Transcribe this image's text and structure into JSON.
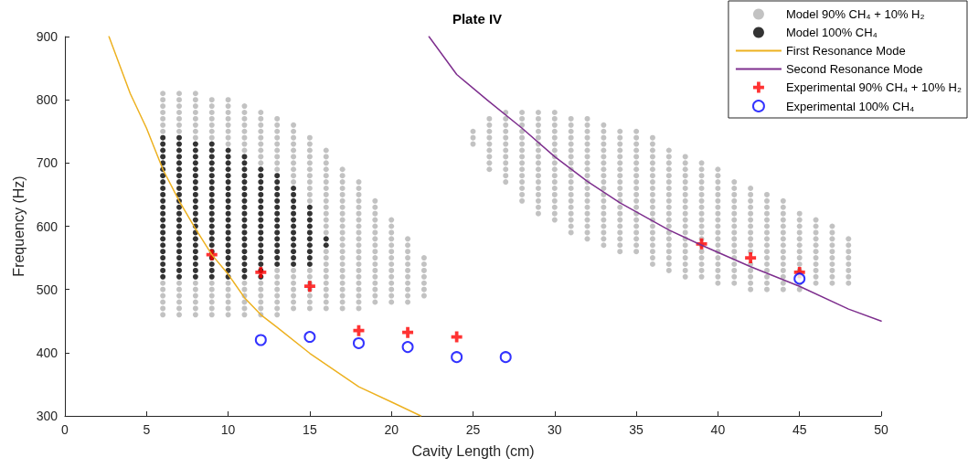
{
  "chart_data": {
    "type": "scatter",
    "title": "Plate IV",
    "xlabel": "Cavity Length (cm)",
    "ylabel": "Frequency (Hz)",
    "xlim": [
      0,
      50
    ],
    "xticks": [
      0,
      5,
      10,
      15,
      20,
      25,
      30,
      35,
      40,
      45,
      50
    ],
    "ylim": [
      300,
      900
    ],
    "yticks": [
      300,
      400,
      500,
      600,
      700,
      800,
      900
    ],
    "grid": false,
    "legend": "top right",
    "series": [
      {
        "name": "Model 90% CH₄ + 10% H₂",
        "marker": "circle",
        "color": "#b3b3b3",
        "x": [
          6,
          6,
          6,
          6,
          6,
          6,
          6,
          6,
          6,
          6,
          6,
          6,
          6,
          7,
          7,
          7,
          7,
          7,
          7,
          7,
          7,
          7,
          7,
          7,
          7,
          7,
          8,
          8,
          8,
          8,
          8,
          8,
          8,
          8,
          8,
          8,
          8,
          8,
          8,
          8,
          9,
          9,
          9,
          9,
          9,
          9,
          9,
          9,
          9,
          9,
          9,
          9,
          9,
          10,
          10,
          10,
          10,
          10,
          10,
          10,
          10,
          10,
          10,
          10,
          10,
          10,
          10,
          11,
          11,
          11,
          11,
          11,
          11,
          11,
          11,
          11,
          11,
          11,
          11,
          11,
          11,
          12,
          12,
          12,
          12,
          12,
          12,
          12,
          12,
          12,
          12,
          12,
          12,
          12,
          12,
          12,
          13,
          13,
          13,
          13,
          13,
          13,
          13,
          13,
          13,
          13,
          13,
          13,
          13,
          13,
          13,
          13,
          13,
          14,
          14,
          14,
          14,
          14,
          14,
          14,
          14,
          14,
          14,
          14,
          14,
          14,
          14,
          14,
          14,
          14,
          15,
          15,
          15,
          15,
          15,
          15,
          15,
          15,
          15,
          15,
          15,
          15,
          15,
          15,
          15,
          15,
          15,
          15,
          16,
          16,
          16,
          16,
          16,
          16,
          16,
          16,
          16,
          16,
          16,
          16,
          16,
          16,
          16,
          16,
          16,
          16,
          16,
          16,
          16,
          16,
          16,
          16,
          17,
          17,
          17,
          17,
          17,
          17,
          17,
          17,
          17,
          17,
          17,
          17,
          17,
          17,
          17,
          17,
          17,
          17,
          17,
          17,
          17,
          17,
          17,
          18,
          18,
          18,
          18,
          18,
          18,
          18,
          18,
          18,
          18,
          18,
          18,
          18,
          18,
          18,
          18,
          18,
          18,
          18,
          18,
          18,
          19,
          19,
          19,
          19,
          19,
          19,
          19,
          19,
          19,
          19,
          19,
          19,
          19,
          19,
          19,
          19,
          19,
          20,
          20,
          20,
          20,
          20,
          20,
          20,
          20,
          20,
          20,
          20,
          20,
          20,
          20,
          21,
          21,
          21,
          21,
          21,
          21,
          21,
          21,
          21,
          21,
          21,
          22,
          22,
          22,
          22,
          22,
          22,
          22,
          25,
          25,
          25,
          26,
          26,
          26,
          26,
          26,
          26,
          26,
          26,
          26,
          27,
          27,
          27,
          27,
          27,
          27,
          27,
          27,
          27,
          27,
          27,
          27,
          28,
          28,
          28,
          28,
          28,
          28,
          28,
          28,
          28,
          28,
          28,
          28,
          28,
          28,
          28,
          29,
          29,
          29,
          29,
          29,
          29,
          29,
          29,
          29,
          29,
          29,
          29,
          29,
          29,
          29,
          29,
          29,
          30,
          30,
          30,
          30,
          30,
          30,
          30,
          30,
          30,
          30,
          30,
          30,
          30,
          30,
          30,
          30,
          30,
          30,
          31,
          31,
          31,
          31,
          31,
          31,
          31,
          31,
          31,
          31,
          31,
          31,
          31,
          31,
          31,
          31,
          31,
          31,
          31,
          32,
          32,
          32,
          32,
          32,
          32,
          32,
          32,
          32,
          32,
          32,
          32,
          32,
          32,
          32,
          32,
          32,
          32,
          32,
          32,
          33,
          33,
          33,
          33,
          33,
          33,
          33,
          33,
          33,
          33,
          33,
          33,
          33,
          33,
          33,
          33,
          33,
          33,
          33,
          33,
          34,
          34,
          34,
          34,
          34,
          34,
          34,
          34,
          34,
          34,
          34,
          34,
          34,
          34,
          34,
          34,
          34,
          34,
          34,
          34,
          35,
          35,
          35,
          35,
          35,
          35,
          35,
          35,
          35,
          35,
          35,
          35,
          35,
          35,
          35,
          35,
          35,
          35,
          35,
          35,
          36,
          36,
          36,
          36,
          36,
          36,
          36,
          36,
          36,
          36,
          36,
          36,
          36,
          36,
          36,
          36,
          36,
          36,
          36,
          36,
          36,
          37,
          37,
          37,
          37,
          37,
          37,
          37,
          37,
          37,
          37,
          37,
          37,
          37,
          37,
          37,
          37,
          37,
          37,
          37,
          37,
          38,
          38,
          38,
          38,
          38,
          38,
          38,
          38,
          38,
          38,
          38,
          38,
          38,
          38,
          38,
          38,
          38,
          38,
          38,
          38,
          39,
          39,
          39,
          39,
          39,
          39,
          39,
          39,
          39,
          39,
          39,
          39,
          39,
          39,
          39,
          39,
          39,
          39,
          39,
          40,
          40,
          40,
          40,
          40,
          40,
          40,
          40,
          40,
          40,
          40,
          40,
          40,
          40,
          40,
          40,
          40,
          40,
          40,
          41,
          41,
          41,
          41,
          41,
          41,
          41,
          41,
          41,
          41,
          41,
          41,
          41,
          41,
          41,
          41,
          41,
          42,
          42,
          42,
          42,
          42,
          42,
          42,
          42,
          42,
          42,
          42,
          42,
          42,
          42,
          42,
          42,
          43,
          43,
          43,
          43,
          43,
          43,
          43,
          43,
          43,
          43,
          43,
          43,
          43,
          43,
          43,
          43,
          44,
          44,
          44,
          44,
          44,
          44,
          44,
          44,
          44,
          44,
          44,
          44,
          44,
          44,
          44,
          45,
          45,
          45,
          45,
          45,
          45,
          45,
          45,
          45,
          45,
          45,
          45,
          45,
          46,
          46,
          46,
          46,
          46,
          46,
          46,
          46,
          46,
          46,
          46,
          47,
          47,
          47,
          47,
          47,
          47,
          47,
          47,
          47,
          47,
          48,
          48,
          48,
          48,
          48,
          48,
          48,
          48
        ],
        "values": [
          460,
          470,
          480,
          490,
          500,
          510,
          750,
          760,
          770,
          780,
          790,
          800,
          810,
          460,
          470,
          480,
          490,
          500,
          510,
          750,
          760,
          770,
          780,
          790,
          800,
          810,
          460,
          470,
          480,
          490,
          500,
          510,
          740,
          750,
          760,
          770,
          780,
          790,
          800,
          810,
          460,
          470,
          480,
          490,
          500,
          510,
          740,
          750,
          760,
          770,
          780,
          790,
          800,
          460,
          470,
          480,
          490,
          500,
          510,
          730,
          740,
          750,
          760,
          770,
          780,
          790,
          800,
          460,
          470,
          480,
          490,
          500,
          510,
          720,
          730,
          740,
          750,
          760,
          770,
          780,
          790,
          460,
          470,
          480,
          490,
          500,
          510,
          700,
          710,
          720,
          730,
          740,
          750,
          760,
          770,
          780,
          460,
          470,
          480,
          490,
          500,
          510,
          520,
          530,
          690,
          700,
          710,
          720,
          730,
          740,
          750,
          760,
          770,
          470,
          480,
          490,
          500,
          510,
          520,
          530,
          670,
          680,
          690,
          700,
          710,
          720,
          730,
          740,
          750,
          760,
          470,
          480,
          490,
          500,
          510,
          520,
          530,
          640,
          650,
          660,
          670,
          680,
          690,
          700,
          710,
          720,
          730,
          740,
          470,
          480,
          490,
          500,
          510,
          520,
          530,
          540,
          550,
          560,
          590,
          600,
          610,
          620,
          630,
          640,
          650,
          660,
          670,
          680,
          690,
          700,
          710,
          720,
          470,
          480,
          490,
          500,
          510,
          520,
          530,
          540,
          550,
          560,
          570,
          580,
          590,
          600,
          610,
          620,
          630,
          640,
          650,
          660,
          670,
          680,
          690,
          470,
          480,
          490,
          500,
          510,
          520,
          530,
          540,
          550,
          560,
          570,
          580,
          590,
          600,
          610,
          620,
          630,
          640,
          650,
          660,
          670,
          480,
          490,
          500,
          510,
          520,
          530,
          540,
          550,
          560,
          570,
          580,
          590,
          600,
          610,
          620,
          630,
          640,
          480,
          490,
          500,
          510,
          520,
          530,
          540,
          550,
          560,
          570,
          580,
          590,
          600,
          610,
          480,
          490,
          500,
          510,
          520,
          530,
          540,
          550,
          560,
          570,
          580,
          490,
          500,
          510,
          520,
          530,
          540,
          550,
          730,
          740,
          750,
          690,
          700,
          710,
          720,
          730,
          740,
          750,
          760,
          770,
          670,
          680,
          690,
          700,
          710,
          720,
          730,
          740,
          750,
          760,
          770,
          780,
          640,
          650,
          660,
          670,
          680,
          690,
          700,
          710,
          720,
          730,
          740,
          750,
          760,
          770,
          780,
          620,
          630,
          640,
          650,
          660,
          670,
          680,
          690,
          700,
          710,
          720,
          730,
          740,
          750,
          760,
          770,
          780,
          610,
          620,
          630,
          640,
          650,
          660,
          670,
          680,
          690,
          700,
          710,
          720,
          730,
          740,
          750,
          760,
          770,
          780,
          590,
          600,
          610,
          620,
          630,
          640,
          650,
          660,
          670,
          680,
          690,
          700,
          710,
          720,
          730,
          740,
          750,
          760,
          770,
          580,
          590,
          600,
          610,
          620,
          630,
          640,
          650,
          660,
          670,
          680,
          690,
          700,
          710,
          720,
          730,
          740,
          750,
          760,
          770,
          570,
          580,
          590,
          600,
          610,
          620,
          630,
          640,
          650,
          660,
          670,
          680,
          690,
          700,
          710,
          720,
          730,
          740,
          750,
          760,
          560,
          570,
          580,
          590,
          600,
          610,
          620,
          630,
          640,
          650,
          660,
          670,
          680,
          690,
          700,
          710,
          720,
          730,
          740,
          750,
          560,
          570,
          580,
          590,
          600,
          610,
          620,
          630,
          640,
          650,
          660,
          670,
          680,
          690,
          700,
          710,
          720,
          730,
          740,
          750,
          540,
          550,
          560,
          570,
          580,
          590,
          600,
          610,
          620,
          630,
          640,
          650,
          660,
          670,
          680,
          690,
          700,
          710,
          720,
          730,
          740,
          530,
          540,
          550,
          560,
          570,
          580,
          590,
          600,
          610,
          620,
          630,
          640,
          650,
          660,
          670,
          680,
          690,
          700,
          710,
          720,
          520,
          530,
          540,
          550,
          560,
          570,
          580,
          590,
          600,
          610,
          620,
          630,
          640,
          650,
          660,
          670,
          680,
          690,
          700,
          710,
          520,
          530,
          540,
          550,
          560,
          570,
          580,
          590,
          600,
          610,
          620,
          630,
          640,
          650,
          660,
          670,
          680,
          690,
          700,
          510,
          520,
          530,
          540,
          550,
          560,
          570,
          580,
          590,
          600,
          610,
          620,
          630,
          640,
          650,
          660,
          670,
          680,
          690,
          510,
          520,
          530,
          540,
          550,
          560,
          570,
          580,
          590,
          600,
          610,
          620,
          630,
          640,
          650,
          660,
          670,
          500,
          510,
          520,
          530,
          540,
          560,
          570,
          580,
          590,
          600,
          610,
          620,
          630,
          640,
          650,
          660,
          500,
          510,
          520,
          530,
          540,
          550,
          560,
          570,
          580,
          590,
          600,
          610,
          620,
          630,
          640,
          650,
          500,
          510,
          520,
          530,
          540,
          550,
          560,
          570,
          580,
          590,
          600,
          610,
          620,
          630,
          640,
          500,
          510,
          520,
          530,
          540,
          550,
          560,
          570,
          580,
          590,
          600,
          610,
          620,
          510,
          520,
          530,
          540,
          550,
          560,
          570,
          580,
          590,
          600,
          610,
          510,
          520,
          530,
          540,
          550,
          560,
          570,
          580,
          590,
          600,
          510,
          520,
          530,
          540,
          550,
          560,
          570,
          580
        ]
      },
      {
        "name": "Model 100% CH₄",
        "marker": "circle",
        "color": "#000000",
        "x": [
          6,
          6,
          6,
          6,
          6,
          6,
          6,
          6,
          6,
          6,
          6,
          6,
          6,
          6,
          6,
          6,
          6,
          6,
          6,
          6,
          6,
          6,
          6,
          7,
          7,
          7,
          7,
          7,
          7,
          7,
          7,
          7,
          7,
          7,
          7,
          7,
          7,
          7,
          7,
          7,
          7,
          7,
          7,
          7,
          7,
          7,
          8,
          8,
          8,
          8,
          8,
          8,
          8,
          8,
          8,
          8,
          8,
          8,
          8,
          8,
          8,
          8,
          8,
          8,
          8,
          8,
          8,
          8,
          9,
          9,
          9,
          9,
          9,
          9,
          9,
          9,
          9,
          9,
          9,
          9,
          9,
          9,
          9,
          9,
          9,
          9,
          9,
          9,
          9,
          9,
          10,
          10,
          10,
          10,
          10,
          10,
          10,
          10,
          10,
          10,
          10,
          10,
          10,
          10,
          10,
          10,
          10,
          10,
          10,
          10,
          10,
          11,
          11,
          11,
          11,
          11,
          11,
          11,
          11,
          11,
          11,
          11,
          11,
          11,
          11,
          11,
          11,
          11,
          11,
          11,
          11,
          12,
          12,
          12,
          12,
          12,
          12,
          12,
          12,
          12,
          12,
          12,
          12,
          12,
          12,
          12,
          12,
          12,
          12,
          13,
          13,
          13,
          13,
          13,
          13,
          13,
          13,
          13,
          13,
          13,
          13,
          13,
          13,
          13,
          14,
          14,
          14,
          14,
          14,
          14,
          14,
          14,
          14,
          14,
          14,
          14,
          14,
          15,
          15,
          15,
          15,
          15,
          15,
          15,
          15,
          15,
          15,
          16,
          16
        ],
        "values": [
          520,
          530,
          540,
          550,
          560,
          570,
          580,
          590,
          600,
          610,
          620,
          630,
          640,
          650,
          660,
          670,
          680,
          690,
          700,
          710,
          720,
          730,
          740,
          520,
          530,
          540,
          550,
          560,
          570,
          580,
          590,
          600,
          610,
          620,
          630,
          640,
          650,
          660,
          670,
          680,
          690,
          700,
          710,
          720,
          730,
          740,
          520,
          530,
          540,
          550,
          560,
          570,
          580,
          590,
          600,
          610,
          620,
          630,
          640,
          650,
          660,
          670,
          680,
          690,
          700,
          710,
          720,
          730,
          520,
          530,
          540,
          550,
          560,
          570,
          580,
          590,
          600,
          610,
          620,
          630,
          640,
          650,
          660,
          670,
          680,
          690,
          700,
          710,
          720,
          730,
          520,
          530,
          540,
          550,
          560,
          570,
          580,
          590,
          600,
          610,
          620,
          630,
          640,
          650,
          660,
          670,
          680,
          690,
          700,
          710,
          720,
          520,
          530,
          540,
          550,
          560,
          570,
          580,
          590,
          600,
          610,
          620,
          630,
          640,
          650,
          660,
          670,
          680,
          690,
          700,
          710,
          520,
          530,
          540,
          550,
          560,
          570,
          580,
          590,
          600,
          610,
          620,
          630,
          640,
          650,
          660,
          670,
          680,
          690,
          540,
          550,
          560,
          570,
          580,
          590,
          600,
          610,
          620,
          630,
          640,
          650,
          660,
          670,
          680,
          540,
          550,
          560,
          570,
          580,
          590,
          600,
          610,
          620,
          630,
          640,
          650,
          660,
          540,
          550,
          560,
          570,
          580,
          590,
          600,
          610,
          620,
          630,
          570,
          580
        ]
      },
      {
        "name": "First Resonance Mode",
        "type": "line",
        "marker": "none",
        "line_style": "solid",
        "color": "#edb120",
        "x": [
          2.7,
          4,
          5,
          6,
          7,
          8,
          9,
          10,
          11,
          12,
          13,
          15,
          18,
          20,
          21.8
        ],
        "values": [
          900,
          810,
          755,
          690,
          640,
          596,
          555,
          524,
          487,
          460,
          440,
          399,
          346,
          322,
          300
        ]
      },
      {
        "name": "Second Resonance Mode",
        "type": "line",
        "marker": "none",
        "line_style": "solid",
        "color": "#7e2f8e",
        "x": [
          22.3,
          24,
          25.9,
          28,
          30,
          32,
          34,
          37,
          39,
          42,
          45,
          48,
          50
        ],
        "values": [
          900,
          840,
          799,
          755,
          710,
          671,
          637,
          594,
          570,
          536,
          505,
          469,
          450
        ]
      },
      {
        "name": "Experimental 90% CH₄ + 10% H₂",
        "marker": "cross",
        "color": "#ff0000",
        "x": [
          9,
          12,
          15,
          18,
          21,
          24,
          39,
          42,
          45
        ],
        "values": [
          555,
          527,
          505,
          435,
          432,
          425,
          572,
          550,
          527
        ]
      },
      {
        "name": "Experimental 100% CH₄",
        "marker": "circle",
        "color": "#0000ff",
        "x": [
          12,
          15,
          18,
          21,
          24,
          27,
          45
        ],
        "values": [
          420,
          425,
          415,
          409,
          393,
          393,
          517
        ]
      }
    ]
  }
}
